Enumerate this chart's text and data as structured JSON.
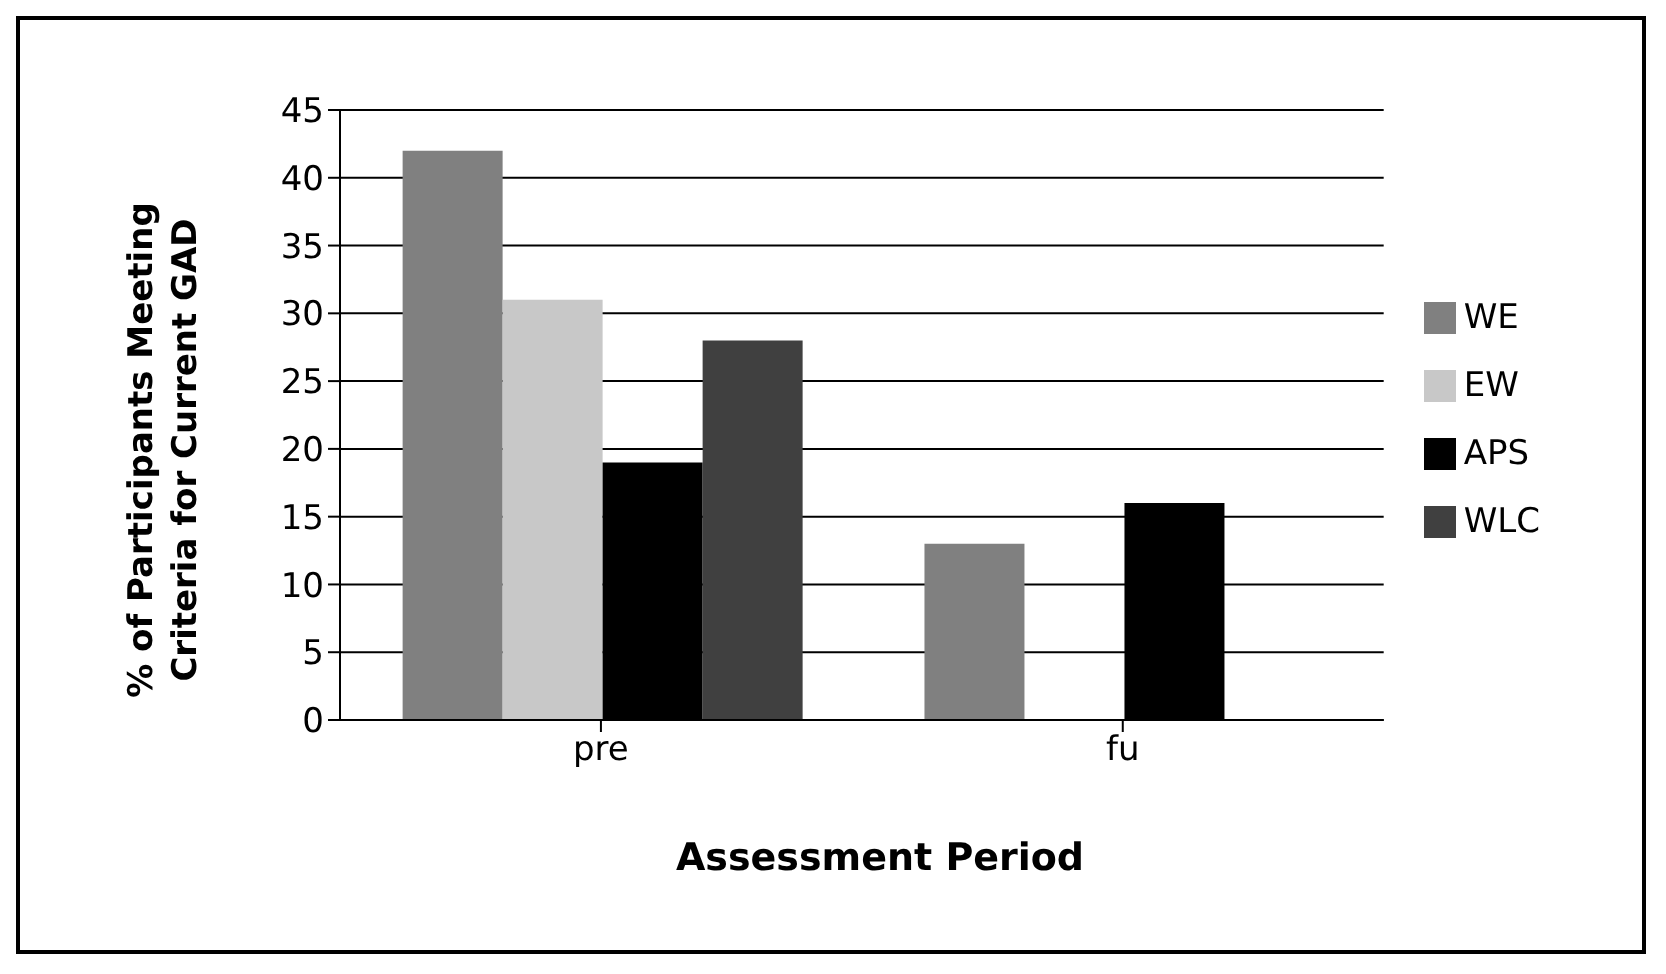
{
  "chart_data": {
    "type": "bar",
    "xlabel": "Assessment Period",
    "ylabel": "% of Participants Meeting Criteria for Current GAD",
    "categories": [
      "pre",
      "fu"
    ],
    "series": [
      {
        "name": "WE",
        "color": "#808080",
        "values": [
          42,
          13
        ]
      },
      {
        "name": "EW",
        "color": "#c8c8c8",
        "values": [
          31,
          0
        ]
      },
      {
        "name": "APS",
        "color": "#000000",
        "values": [
          19,
          16
        ]
      },
      {
        "name": "WLC",
        "color": "#404040",
        "values": [
          28,
          0
        ]
      }
    ],
    "ylim": [
      0,
      45
    ],
    "yticks": [
      0,
      5,
      10,
      15,
      20,
      25,
      30,
      35,
      40,
      45
    ],
    "grid": "y",
    "legend": "right"
  }
}
